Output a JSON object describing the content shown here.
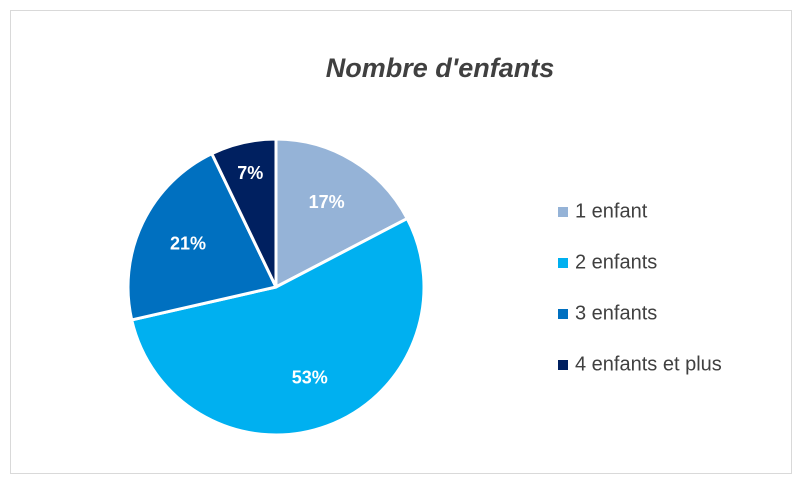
{
  "chart_data": {
    "type": "pie",
    "title": "Nombre d'enfants",
    "categories": [
      "1 enfant",
      "2 enfants",
      "3 enfants",
      "4 enfants et plus"
    ],
    "values": [
      17,
      53,
      21,
      7
    ],
    "value_labels": [
      "17%",
      "53%",
      "21%",
      "7%"
    ],
    "colors": [
      "#95b3d7",
      "#00b0f0",
      "#0070c0",
      "#002060"
    ],
    "legend": "right"
  }
}
